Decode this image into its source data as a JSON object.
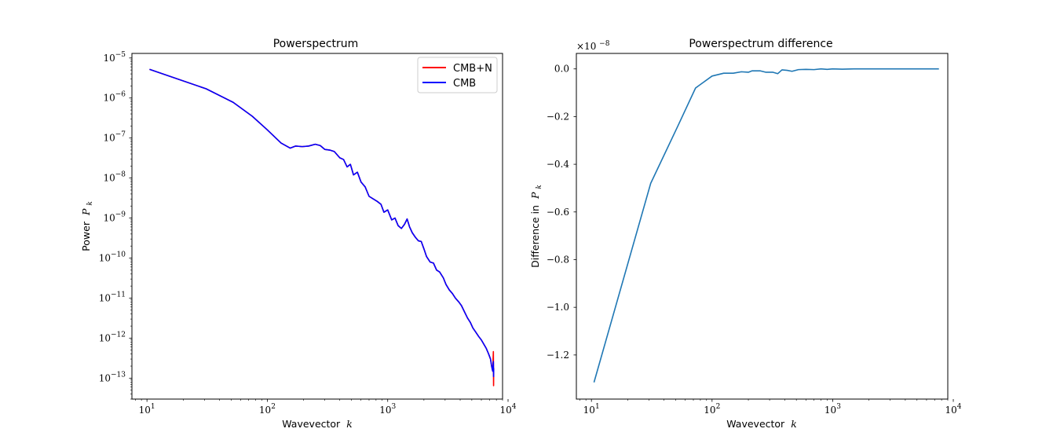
{
  "chart_data": [
    {
      "type": "line",
      "title": "Powerspectrum",
      "xlabel_text": "Wavevector",
      "xlabel_sym": "k",
      "ylabel_text": "Power",
      "ylabel_sym": "P",
      "ylabel_sub": "k",
      "xscale": "log",
      "yscale": "log",
      "xlim": [
        7.5,
        9000
      ],
      "ylim": [
        3e-14,
        1.3e-05
      ],
      "legend": "top-right",
      "xticks": [
        {
          "value": 10,
          "exp": "1"
        },
        {
          "value": 100,
          "exp": "2"
        },
        {
          "value": 1000,
          "exp": "3"
        },
        {
          "value": 10000,
          "exp": "4"
        }
      ],
      "yticks": [
        {
          "value": 1e-13,
          "exp": "−13"
        },
        {
          "value": 1e-12,
          "exp": "−12"
        },
        {
          "value": 1e-11,
          "exp": "−11"
        },
        {
          "value": 1e-10,
          "exp": "−10"
        },
        {
          "value": 1e-09,
          "exp": "−9"
        },
        {
          "value": 1e-08,
          "exp": "−8"
        },
        {
          "value": 1e-07,
          "exp": "−7"
        },
        {
          "value": 1e-06,
          "exp": "−6"
        },
        {
          "value": 1e-05,
          "exp": "−5"
        }
      ],
      "series": [
        {
          "name": "CMB+N",
          "color": "#ff0000",
          "points": [
            [
              10.5,
              5.2e-06
            ],
            [
              31,
              1.7e-06
            ],
            [
              52,
              7.8e-07
            ],
            [
              75,
              3.5e-07
            ],
            [
              100,
              1.6e-07
            ],
            [
              130,
              7.5e-08
            ],
            [
              155,
              5.6e-08
            ],
            [
              172,
              6.3e-08
            ],
            [
              195,
              6.1e-08
            ],
            [
              220,
              6.3e-08
            ],
            [
              250,
              7e-08
            ],
            [
              275,
              6.5e-08
            ],
            [
              300,
              5.2e-08
            ],
            [
              330,
              5e-08
            ],
            [
              360,
              4.6e-08
            ],
            [
              400,
              3.2e-08
            ],
            [
              430,
              2.9e-08
            ],
            [
              460,
              1.9e-08
            ],
            [
              490,
              2.2e-08
            ],
            [
              520,
              1.2e-08
            ],
            [
              560,
              1.4e-08
            ],
            [
              600,
              8e-09
            ],
            [
              650,
              6e-09
            ],
            [
              700,
              3.5e-09
            ],
            [
              760,
              3e-09
            ],
            [
              820,
              2.6e-09
            ],
            [
              880,
              2.2e-09
            ],
            [
              930,
              1.4e-09
            ],
            [
              1000,
              1.6e-09
            ],
            [
              1080,
              9e-10
            ],
            [
              1150,
              1e-09
            ],
            [
              1220,
              6.5e-10
            ],
            [
              1300,
              5.5e-10
            ],
            [
              1380,
              7e-10
            ],
            [
              1450,
              9.5e-10
            ],
            [
              1520,
              6e-10
            ],
            [
              1600,
              4.3e-10
            ],
            [
              1700,
              3.3e-10
            ],
            [
              1800,
              2.7e-10
            ],
            [
              1900,
              2.6e-10
            ],
            [
              2000,
              1.7e-10
            ],
            [
              2100,
              1.1e-10
            ],
            [
              2250,
              8e-11
            ],
            [
              2400,
              7.5e-11
            ],
            [
              2550,
              5e-11
            ],
            [
              2700,
              4.5e-11
            ],
            [
              2900,
              3.2e-11
            ],
            [
              3050,
              2.2e-11
            ],
            [
              3250,
              1.6e-11
            ],
            [
              3450,
              1.3e-11
            ],
            [
              3650,
              1e-11
            ],
            [
              3900,
              8e-12
            ],
            [
              4100,
              6.5e-12
            ],
            [
              4350,
              4.5e-12
            ],
            [
              4600,
              3.2e-12
            ],
            [
              4850,
              2.5e-12
            ],
            [
              5100,
              1.8e-12
            ],
            [
              5400,
              1.4e-12
            ],
            [
              5700,
              1.1e-12
            ],
            [
              6000,
              9e-13
            ],
            [
              6300,
              7e-13
            ],
            [
              6600,
              5.5e-13
            ],
            [
              6900,
              4e-13
            ],
            [
              7150,
              3e-13
            ],
            [
              7300,
              2e-13
            ],
            [
              7450,
              1.5e-13
            ],
            [
              7550,
              4.6e-13
            ],
            [
              7580,
              6.5e-14
            ],
            [
              7600,
              1.8e-13
            ]
          ]
        },
        {
          "name": "CMB",
          "color": "#0000ff",
          "points": [
            [
              10.5,
              5.2e-06
            ],
            [
              31,
              1.7e-06
            ],
            [
              52,
              7.8e-07
            ],
            [
              75,
              3.5e-07
            ],
            [
              100,
              1.6e-07
            ],
            [
              130,
              7.5e-08
            ],
            [
              155,
              5.6e-08
            ],
            [
              172,
              6.3e-08
            ],
            [
              195,
              6.1e-08
            ],
            [
              220,
              6.3e-08
            ],
            [
              250,
              7e-08
            ],
            [
              275,
              6.5e-08
            ],
            [
              300,
              5.2e-08
            ],
            [
              330,
              5e-08
            ],
            [
              360,
              4.6e-08
            ],
            [
              400,
              3.2e-08
            ],
            [
              430,
              2.9e-08
            ],
            [
              460,
              1.9e-08
            ],
            [
              490,
              2.2e-08
            ],
            [
              520,
              1.2e-08
            ],
            [
              560,
              1.4e-08
            ],
            [
              600,
              8e-09
            ],
            [
              650,
              6e-09
            ],
            [
              700,
              3.5e-09
            ],
            [
              760,
              3e-09
            ],
            [
              820,
              2.6e-09
            ],
            [
              880,
              2.2e-09
            ],
            [
              930,
              1.4e-09
            ],
            [
              1000,
              1.6e-09
            ],
            [
              1080,
              9e-10
            ],
            [
              1150,
              1e-09
            ],
            [
              1220,
              6.5e-10
            ],
            [
              1300,
              5.5e-10
            ],
            [
              1380,
              7e-10
            ],
            [
              1450,
              9.5e-10
            ],
            [
              1520,
              6e-10
            ],
            [
              1600,
              4.3e-10
            ],
            [
              1700,
              3.3e-10
            ],
            [
              1800,
              2.7e-10
            ],
            [
              1900,
              2.6e-10
            ],
            [
              2000,
              1.7e-10
            ],
            [
              2100,
              1.1e-10
            ],
            [
              2250,
              8e-11
            ],
            [
              2400,
              7.5e-11
            ],
            [
              2550,
              5e-11
            ],
            [
              2700,
              4.5e-11
            ],
            [
              2900,
              3.2e-11
            ],
            [
              3050,
              2.2e-11
            ],
            [
              3250,
              1.6e-11
            ],
            [
              3450,
              1.3e-11
            ],
            [
              3650,
              1e-11
            ],
            [
              3900,
              8e-12
            ],
            [
              4100,
              6.5e-12
            ],
            [
              4350,
              4.5e-12
            ],
            [
              4600,
              3.2e-12
            ],
            [
              4850,
              2.5e-12
            ],
            [
              5100,
              1.8e-12
            ],
            [
              5400,
              1.4e-12
            ],
            [
              5700,
              1.1e-12
            ],
            [
              6000,
              9e-13
            ],
            [
              6300,
              7e-13
            ],
            [
              6600,
              5.5e-13
            ],
            [
              6900,
              4e-13
            ],
            [
              7150,
              3e-13
            ],
            [
              7300,
              2e-13
            ],
            [
              7450,
              1.5e-13
            ],
            [
              7550,
              2.6e-13
            ],
            [
              7580,
              1.1e-13
            ],
            [
              7600,
              1.7e-13
            ]
          ]
        }
      ]
    },
    {
      "type": "line",
      "title": "Powerspectrum difference",
      "xlabel_text": "Wavevector",
      "xlabel_sym": "k",
      "ylabel_text": "Difference in",
      "ylabel_sym": "P",
      "ylabel_sub": "k",
      "offset_text": "×10",
      "offset_exp": "−8",
      "xscale": "log",
      "yscale": "linear",
      "xlim": [
        7.5,
        9000
      ],
      "ylim": [
        -1.385,
        0.065
      ],
      "xticks": [
        {
          "value": 10,
          "exp": "1"
        },
        {
          "value": 100,
          "exp": "2"
        },
        {
          "value": 1000,
          "exp": "3"
        },
        {
          "value": 10000,
          "exp": "4"
        }
      ],
      "yticks": [
        {
          "value": 0.0,
          "label": "0.0"
        },
        {
          "value": -0.2,
          "label": "−0.2"
        },
        {
          "value": -0.4,
          "label": "−0.4"
        },
        {
          "value": -0.6,
          "label": "−0.6"
        },
        {
          "value": -0.8,
          "label": "−0.8"
        },
        {
          "value": -1.0,
          "label": "−1.0"
        },
        {
          "value": -1.2,
          "label": "−1.2"
        }
      ],
      "series": [
        {
          "name": "difference",
          "color": "#1f77b4",
          "points": [
            [
              10.5,
              -1.315
            ],
            [
              31,
              -0.48
            ],
            [
              52,
              -0.24
            ],
            [
              73,
              -0.08
            ],
            [
              100,
              -0.03
            ],
            [
              125,
              -0.018
            ],
            [
              150,
              -0.018
            ],
            [
              175,
              -0.012
            ],
            [
              200,
              -0.014
            ],
            [
              215,
              -0.008
            ],
            [
              250,
              -0.008
            ],
            [
              280,
              -0.014
            ],
            [
              320,
              -0.014
            ],
            [
              350,
              -0.02
            ],
            [
              380,
              -0.004
            ],
            [
              420,
              -0.006
            ],
            [
              460,
              -0.01
            ],
            [
              520,
              -0.003
            ],
            [
              600,
              -0.002
            ],
            [
              700,
              -0.003
            ],
            [
              800,
              0.0
            ],
            [
              900,
              -0.002
            ],
            [
              1000,
              0.0
            ],
            [
              1200,
              -0.001
            ],
            [
              1500,
              0.0
            ],
            [
              3000,
              0.0
            ],
            [
              5000,
              0.0
            ],
            [
              7600,
              0.0
            ]
          ]
        }
      ]
    }
  ]
}
